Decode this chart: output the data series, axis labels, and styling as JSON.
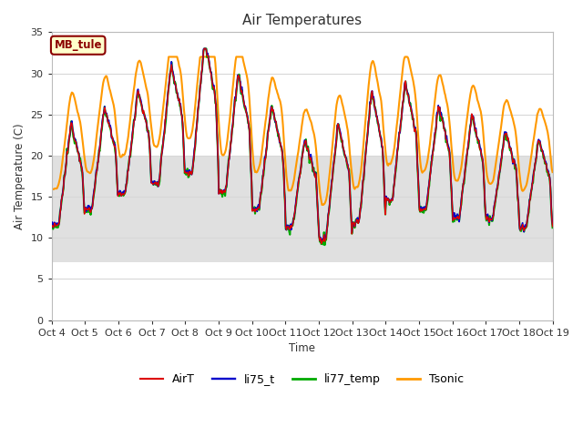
{
  "title": "Air Temperatures",
  "ylabel": "Air Temperature (C)",
  "xlabel": "Time",
  "ylim": [
    0,
    35
  ],
  "yticks": [
    0,
    5,
    10,
    15,
    20,
    25,
    30,
    35
  ],
  "xtick_labels": [
    "Oct 4",
    "Oct 5",
    "Oct 6",
    "Oct 7",
    "Oct 8",
    "Oct 9",
    "Oct 10",
    "Oct 11",
    "Oct 12",
    "Oct 13",
    "Oct 14",
    "Oct 15",
    "Oct 16",
    "Oct 17",
    "Oct 18",
    "Oct 19"
  ],
  "annotation_text": "MB_tule",
  "annotation_bg": "#ffffcc",
  "annotation_border": "#8b0000",
  "plot_bg_outer": "#f0f0f0",
  "plot_bg_inner": "#ffffff",
  "fig_bg": "#ffffff",
  "grid_color": "#d8d8d8",
  "shaded_band_low": 7.0,
  "shaded_band_high": 20.0,
  "shaded_band_color": "#e0e0e0",
  "colors": {
    "AirT": "#dd0000",
    "li75_t": "#0000cc",
    "li77_temp": "#00aa00",
    "Tsonic": "#ff9900"
  },
  "linewidths": {
    "AirT": 1.0,
    "li75_t": 1.2,
    "li77_temp": 1.5,
    "Tsonic": 1.5
  },
  "legend_labels": [
    "AirT",
    "li75_t",
    "li77_temp",
    "Tsonic"
  ],
  "figsize": [
    6.4,
    4.8
  ],
  "dpi": 100
}
